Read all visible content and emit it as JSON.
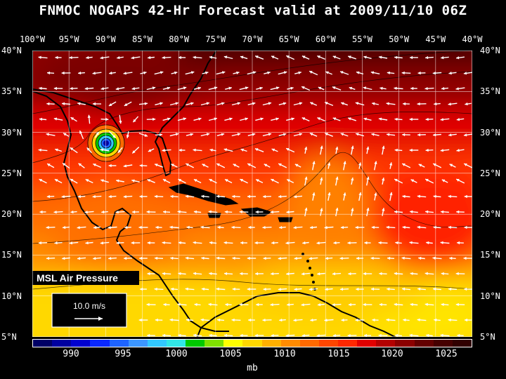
{
  "title": "FNMOC NOGAPS 42-Hr Forecast valid at 2009/11/10 06Z",
  "lon_labels": [
    "100°W",
    "95°W",
    "90°W",
    "85°W",
    "80°W",
    "75°W",
    "70°W",
    "65°W",
    "60°W",
    "55°W",
    "50°W",
    "45°W",
    "40°W"
  ],
  "lat_labels": [
    "40°N",
    "35°N",
    "30°N",
    "25°N",
    "20°N",
    "15°N",
    "10°N",
    "5°N"
  ],
  "map_label": "MSL Air Pressure",
  "wind_scale_label": "10.0 m/s",
  "colorbar": {
    "unit": "mb",
    "tick_labels": [
      "990",
      "995",
      "1000",
      "1005",
      "1010",
      "1015",
      "1020",
      "1025"
    ],
    "colors": [
      "#000066",
      "#0000a0",
      "#0000d0",
      "#0a28ff",
      "#1e64ff",
      "#3c96ff",
      "#32c8ff",
      "#32e6e6",
      "#00c800",
      "#7fe000",
      "#ffff00",
      "#ffd800",
      "#ffb000",
      "#ff8c00",
      "#ff6a00",
      "#ff4600",
      "#ff2800",
      "#e10000",
      "#b40000",
      "#8c0000",
      "#640000",
      "#460000",
      "#300000"
    ]
  },
  "field": {
    "lon_range": [
      -100,
      -40
    ],
    "lat_range": [
      5,
      40
    ],
    "low_center": {
      "lon": -88.5,
      "lat": 29.5,
      "pressure_mb": 993
    },
    "colors": {
      "land": "#000000",
      "grid": "#ffffff",
      "wind_vectors": "#ffffff",
      "isobars": "#000000"
    }
  }
}
